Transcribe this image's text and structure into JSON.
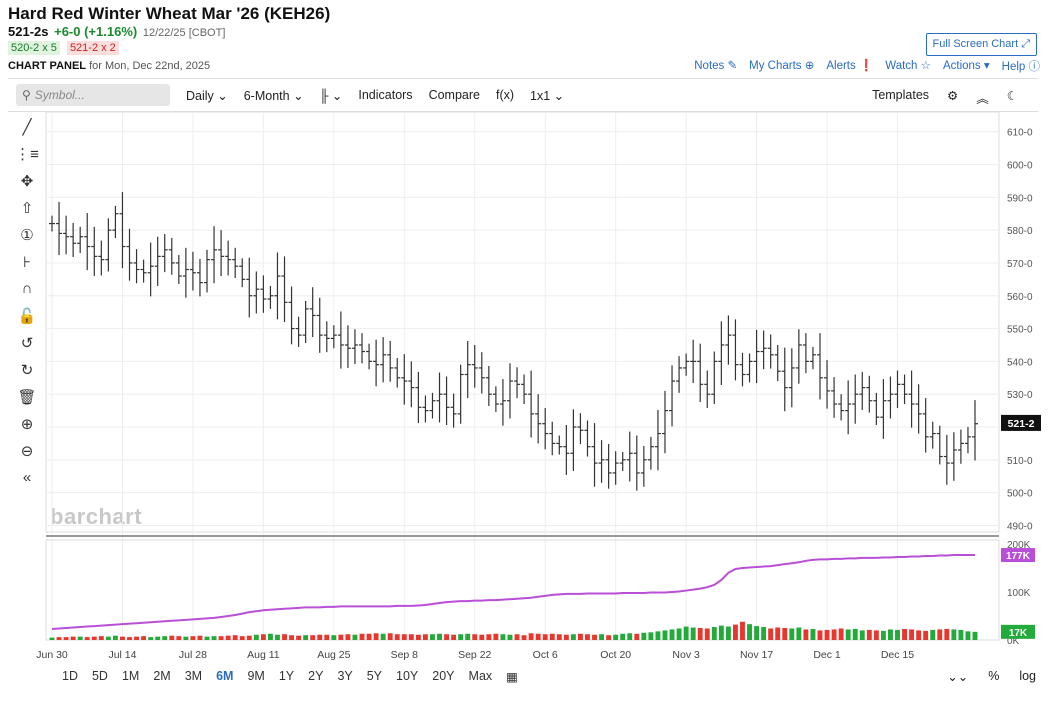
{
  "header": {
    "title": "Hard Red Winter Wheat Mar '26 (KEH26)",
    "last": "521-2s",
    "change": "+6-0 (+1.16%)",
    "meta": "12/22/25 [CBOT]",
    "bid": "520-2 x 5",
    "ask": "521-2 x 2",
    "panel_label": "CHART PANEL",
    "panel_date": "for Mon, Dec 22nd, 2025",
    "full_screen": "Full Screen Chart ⤢"
  },
  "toplinks": {
    "notes": "Notes ✎",
    "mycharts": "My Charts ⊕",
    "alerts": "Alerts ❗",
    "watch": "Watch ☆",
    "actions": "Actions ▾",
    "help": "Help ⓘ"
  },
  "toolbar": {
    "symbol_placeholder": "Symbol...",
    "interval": "Daily ⌄",
    "period": "6-Month ⌄",
    "bar_type": "╟ ⌄",
    "indicators": "Indicators",
    "compare": "Compare",
    "fx": "f(x)",
    "layout": "1x1 ⌄",
    "templates": "Templates",
    "settings": "⚙",
    "collapse": "︽",
    "theme": "☾"
  },
  "tools": [
    "╱",
    "⋮≡",
    "✥",
    "⇧",
    "①",
    "⊦",
    "∩",
    "🔓",
    "↺",
    "↻",
    "🗑",
    "⊕",
    "⊖",
    "«"
  ],
  "watermark": "barchart",
  "ranges": [
    "1D",
    "5D",
    "1M",
    "2M",
    "3M",
    "6M",
    "9M",
    "1Y",
    "2Y",
    "3Y",
    "5Y",
    "10Y",
    "20Y",
    "Max",
    "▦"
  ],
  "selected_range": "6M",
  "range_right": [
    "⌄⌄",
    "%",
    "log"
  ],
  "colors": {
    "up": "#22aa3a",
    "down": "#e8372e",
    "oi": "#b94fd6",
    "bar": "#333333"
  },
  "chart_data": {
    "type": "ohlc",
    "y_ticks": [
      "610-0",
      "600-0",
      "590-0",
      "580-0",
      "570-0",
      "560-0",
      "550-0",
      "540-0",
      "530-0",
      "520-0",
      "510-0",
      "500-0",
      "490-0"
    ],
    "y_tick_values": [
      610,
      600,
      590,
      580,
      570,
      560,
      550,
      540,
      530,
      520,
      510,
      500,
      490
    ],
    "ylim": [
      488,
      616
    ],
    "last_label": "521-2",
    "last_value": 521.25,
    "x_labels": [
      "Jun 30",
      "Jul 14",
      "Jul 28",
      "Aug 11",
      "Aug 25",
      "Sep 8",
      "Sep 22",
      "Oct 6",
      "Oct 20",
      "Nov 3",
      "Nov 17",
      "Dec 1",
      "Dec 15"
    ],
    "x_label_index": [
      0,
      10,
      20,
      30,
      40,
      50,
      60,
      70,
      80,
      90,
      100,
      110,
      120
    ],
    "closes": [
      582,
      579,
      578,
      576,
      578,
      575,
      572,
      571,
      580,
      585,
      575,
      570,
      568,
      567,
      569,
      572,
      574,
      570,
      566,
      568,
      567,
      564,
      571,
      574,
      572,
      571,
      569,
      565,
      560,
      562,
      559,
      560,
      566,
      558,
      550,
      548,
      556,
      554,
      548,
      547,
      548,
      545,
      544,
      545,
      543,
      540,
      539,
      542,
      538,
      535,
      534,
      532,
      526,
      525,
      528,
      530,
      526,
      524,
      536,
      539,
      538,
      535,
      530,
      527,
      528,
      534,
      533,
      530,
      524,
      521,
      518,
      515,
      514,
      512,
      520,
      519,
      514,
      509,
      510,
      506,
      509,
      510,
      512,
      506,
      510,
      514,
      518,
      525,
      534,
      538,
      540,
      540,
      533,
      530,
      540,
      545,
      548,
      539,
      536,
      540,
      543,
      544,
      542,
      537,
      532,
      538,
      545,
      540,
      542,
      535,
      531,
      527,
      525,
      527,
      530,
      532,
      528,
      523,
      528,
      530,
      533,
      530,
      527,
      524,
      517,
      518,
      511,
      509,
      513,
      515,
      517,
      521
    ]
  },
  "volume_data": {
    "y_ticks": [
      "200K",
      "100K",
      "0K"
    ],
    "y_tick_values": [
      200,
      100,
      0
    ],
    "oi_label": "177K",
    "vol_label": "17K",
    "oi": [
      23,
      24,
      25,
      26,
      27,
      28,
      29,
      30,
      31,
      32,
      33,
      34,
      35,
      36,
      37,
      38,
      39,
      40,
      41,
      42,
      43,
      44,
      45,
      46,
      48,
      50,
      52,
      55,
      58,
      60,
      62,
      63,
      64,
      65,
      66,
      67,
      68,
      68,
      68,
      69,
      69,
      70,
      70,
      70,
      70,
      70,
      70,
      70,
      70,
      71,
      71,
      71,
      72,
      73,
      75,
      77,
      79,
      80,
      81,
      81,
      82,
      82,
      83,
      83,
      84,
      85,
      86,
      87,
      88,
      90,
      92,
      94,
      95,
      96,
      96,
      96,
      97,
      97,
      97,
      97,
      97,
      98,
      98,
      98,
      98,
      99,
      99,
      99,
      100,
      101,
      103,
      105,
      107,
      110,
      115,
      125,
      140,
      148,
      150,
      151,
      152,
      153,
      154,
      156,
      158,
      160,
      162,
      165,
      167,
      168,
      168,
      169,
      169,
      170,
      170,
      171,
      171,
      171,
      172,
      172,
      173,
      173,
      174,
      174,
      175,
      175,
      176,
      176,
      177,
      177,
      177,
      177
    ],
    "vol": [
      5,
      6,
      6,
      7,
      7,
      6,
      7,
      8,
      7,
      9,
      7,
      6,
      7,
      8,
      6,
      7,
      8,
      9,
      8,
      7,
      8,
      9,
      7,
      8,
      8,
      9,
      10,
      8,
      9,
      11,
      12,
      13,
      11,
      12,
      10,
      9,
      10,
      10,
      11,
      11,
      10,
      11,
      12,
      11,
      13,
      13,
      14,
      13,
      14,
      12,
      12,
      12,
      11,
      12,
      12,
      13,
      12,
      11,
      12,
      13,
      12,
      11,
      12,
      13,
      12,
      11,
      12,
      10,
      14,
      13,
      12,
      13,
      12,
      11,
      12,
      13,
      12,
      11,
      12,
      10,
      11,
      13,
      14,
      13,
      15,
      16,
      18,
      20,
      22,
      24,
      28,
      26,
      25,
      24,
      27,
      30,
      28,
      32,
      38,
      33,
      29,
      27,
      24,
      26,
      25,
      24,
      26,
      22,
      23,
      20,
      21,
      22,
      24,
      22,
      23,
      20,
      21,
      20,
      19,
      22,
      21,
      23,
      22,
      20,
      19,
      21,
      22,
      23,
      22,
      21,
      18,
      17
    ]
  }
}
